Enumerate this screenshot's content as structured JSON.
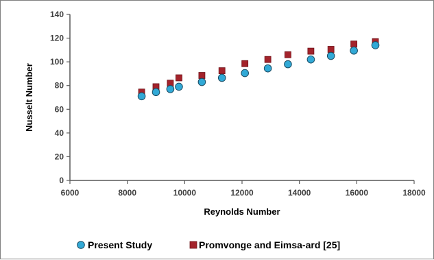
{
  "chart_data": {
    "type": "scatter",
    "xlabel": "Reynolds Number",
    "ylabel": "Nusselt Number",
    "xlim": [
      6000,
      18000
    ],
    "ylim": [
      0,
      140
    ],
    "xticks": [
      6000,
      8000,
      10000,
      12000,
      14000,
      16000,
      18000
    ],
    "yticks": [
      0,
      20,
      40,
      60,
      80,
      100,
      120,
      140
    ],
    "grid": false,
    "legend_position": "bottom",
    "series": [
      {
        "name": "Present Study",
        "marker": "circle",
        "color": "#31a9d6",
        "points": [
          [
            8500,
            71
          ],
          [
            9000,
            74.5
          ],
          [
            9500,
            77
          ],
          [
            9800,
            79
          ],
          [
            10600,
            83
          ],
          [
            11300,
            86.5
          ],
          [
            12100,
            90.5
          ],
          [
            12900,
            94.5
          ],
          [
            13600,
            98
          ],
          [
            14400,
            102
          ],
          [
            15100,
            105
          ],
          [
            15900,
            109.5
          ],
          [
            16650,
            114
          ]
        ]
      },
      {
        "name": "Promvonge and Eimsa-ard [25]",
        "marker": "square",
        "color": "#a3232b",
        "points": [
          [
            8500,
            74.5
          ],
          [
            9000,
            79
          ],
          [
            9500,
            82
          ],
          [
            9800,
            86.5
          ],
          [
            10600,
            88.5
          ],
          [
            11300,
            92.5
          ],
          [
            12100,
            98.5
          ],
          [
            12900,
            102
          ],
          [
            13600,
            106
          ],
          [
            14400,
            109
          ],
          [
            15100,
            110.5
          ],
          [
            15900,
            115
          ],
          [
            16650,
            117
          ]
        ]
      }
    ]
  }
}
